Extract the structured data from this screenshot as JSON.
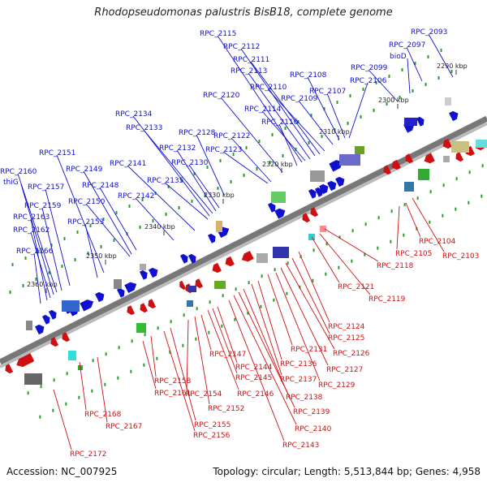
{
  "title": "Rhodopseudomonas palustris BisB18, complete genome",
  "footer": {
    "accession": "Accession: NC_007925",
    "summary": "Topology: circular; Length: 5,513,844 bp; Genes: 4,958"
  },
  "colors": {
    "forward": "#1010d0",
    "reverse": "#d01010",
    "backbone": "#777777",
    "gc": "#2a9a2a"
  },
  "scale_labels": [
    "2290 kbp",
    "2300 kbp",
    "2310 kbp",
    "2320 kbp",
    "2330 kbp",
    "2340 kbp",
    "2350 kbp",
    "2360 kbp"
  ],
  "forward_labels": [
    "RPC_2093",
    "RPC_2097",
    "bioD",
    "RPC_2099",
    "RPC_2106",
    "RPC_2107",
    "RPC_2108",
    "RPC_2109",
    "RPC_2110",
    "RPC_2111",
    "RPC_2112",
    "RPC_2113",
    "RPC_2114",
    "RPC_2115",
    "RPC_2116",
    "RPC_2120",
    "RPC_2122",
    "RPC_2123",
    "RPC_2128",
    "RPC_2130",
    "RPC_2132",
    "RPC_2133",
    "RPC_2134",
    "RPC_2135",
    "RPC_2141",
    "RPC_2142",
    "RPC_2148",
    "RPC_2149",
    "RPC_2150",
    "RPC_2151",
    "RPC_2153",
    "RPC_2157",
    "RPC_2159",
    "RPC_2160",
    "thiG",
    "RPC_2162",
    "RPC_2163",
    "RPC_2166"
  ],
  "reverse_labels": [
    "RPC_2103",
    "RPC_2104",
    "RPC_2105",
    "RPC_2118",
    "RPC_2119",
    "RPC_2121",
    "RPC_2124",
    "RPC_2125",
    "RPC_2126",
    "RPC_2127",
    "RPC_2129",
    "RPC_2131",
    "RPC_2136",
    "RPC_2137",
    "RPC_2138",
    "RPC_2139",
    "RPC_2140",
    "RPC_2143",
    "RPC_2144",
    "RPC_2145",
    "RPC_2146",
    "RPC_2147",
    "RPC_2152",
    "RPC_2154",
    "RPC_2155",
    "RPC_2156",
    "RPC_2158",
    "RPC_2161",
    "RPC_2167",
    "RPC_2168",
    "RPC_2172"
  ]
}
